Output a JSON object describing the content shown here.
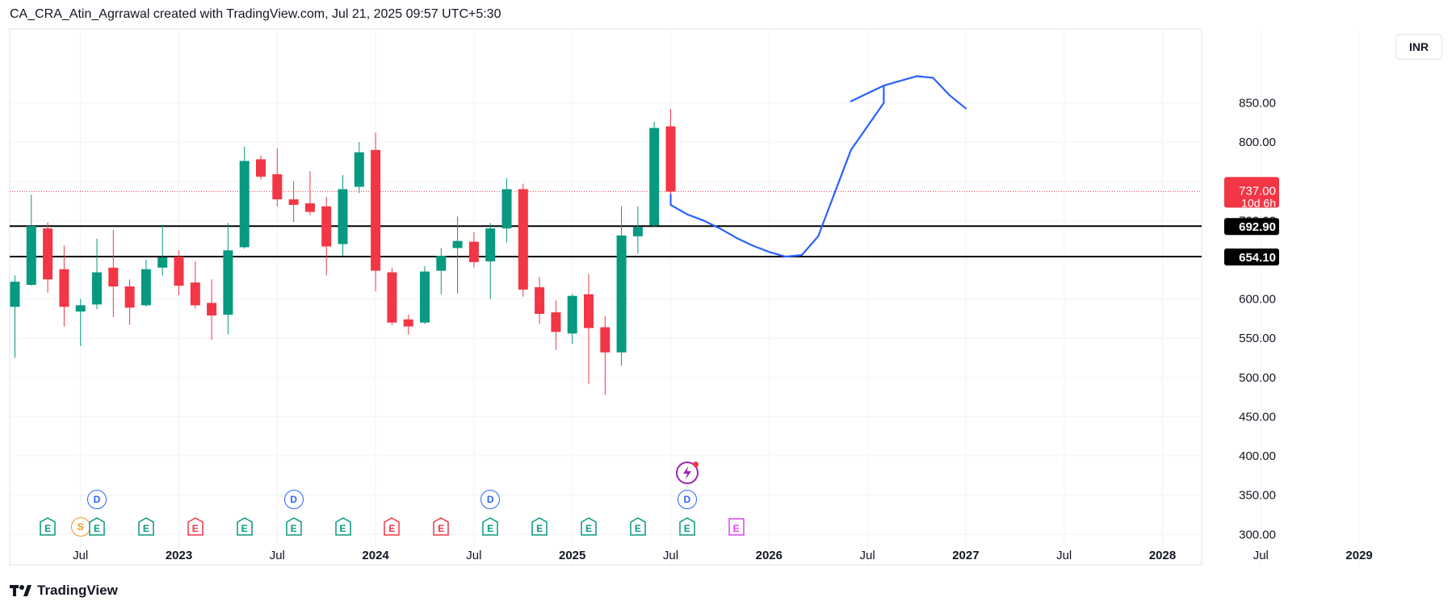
{
  "header": {
    "title": "CA_CRA_Atin_Agrrawal created with TradingView.com, Jul 21, 2025 09:57 UTC+5:30"
  },
  "currency": "INR",
  "footer": {
    "brand": "TradingView"
  },
  "colors": {
    "up": "#089981",
    "down": "#f23645",
    "dividend": "#2962ff",
    "split": "#f7931a",
    "drawing": "#2962ff",
    "future_earnings": "#e040fb",
    "lightning": "#9c27b0"
  },
  "price_labels": [
    {
      "text": "737.00",
      "sub": "10d 6h",
      "kind": "last",
      "price": 737
    },
    {
      "text": "692.90",
      "kind": "level",
      "price": 692.9
    },
    {
      "text": "654.10",
      "kind": "level",
      "price": 654.1
    }
  ],
  "chart_data": {
    "type": "candlestick",
    "interval": "1M",
    "y_axis": {
      "ticks": [
        "300.00",
        "350.00",
        "400.00",
        "450.00",
        "500.00",
        "550.00",
        "600.00",
        "650.00",
        "700.00",
        "750.00",
        "800.00",
        "850.00"
      ],
      "range": [
        290,
        905
      ],
      "side": "right"
    },
    "x_axis": {
      "labels": [
        {
          "text": "Jul",
          "bold": false
        },
        {
          "text": "2023",
          "bold": true
        },
        {
          "text": "Jul",
          "bold": false
        },
        {
          "text": "2024",
          "bold": true
        },
        {
          "text": "Jul",
          "bold": false
        },
        {
          "text": "2025",
          "bold": true
        },
        {
          "text": "Jul",
          "bold": false
        },
        {
          "text": "2026",
          "bold": true
        },
        {
          "text": "Jul",
          "bold": false
        },
        {
          "text": "2027",
          "bold": true
        },
        {
          "text": "Jul",
          "bold": false
        },
        {
          "text": "2028",
          "bold": true
        },
        {
          "text": "Jul",
          "bold": false
        },
        {
          "text": "2029",
          "bold": true
        }
      ]
    },
    "horizontal_lines": [
      692.9,
      654.1
    ],
    "last_price": 737.0,
    "candles": [
      {
        "month": "2022-03",
        "o": 590,
        "h": 630,
        "l": 525,
        "c": 622
      },
      {
        "month": "2022-04",
        "o": 618,
        "h": 733,
        "l": 617,
        "c": 693
      },
      {
        "month": "2022-05",
        "o": 690,
        "h": 698,
        "l": 608,
        "c": 625
      },
      {
        "month": "2022-06",
        "o": 638,
        "h": 668,
        "l": 565,
        "c": 590
      },
      {
        "month": "2022-07",
        "o": 584,
        "h": 600,
        "l": 540,
        "c": 592
      },
      {
        "month": "2022-08",
        "o": 593,
        "h": 677,
        "l": 587,
        "c": 634
      },
      {
        "month": "2022-09",
        "o": 640,
        "h": 688,
        "l": 577,
        "c": 616
      },
      {
        "month": "2022-10",
        "o": 616,
        "h": 625,
        "l": 567,
        "c": 589
      },
      {
        "month": "2022-11",
        "o": 592,
        "h": 650,
        "l": 590,
        "c": 638
      },
      {
        "month": "2022-12",
        "o": 640,
        "h": 695,
        "l": 630,
        "c": 653
      },
      {
        "month": "2023-01",
        "o": 654,
        "h": 662,
        "l": 605,
        "c": 617
      },
      {
        "month": "2023-02",
        "o": 621,
        "h": 648,
        "l": 588,
        "c": 592
      },
      {
        "month": "2023-03",
        "o": 595,
        "h": 625,
        "l": 548,
        "c": 579
      },
      {
        "month": "2023-04",
        "o": 580,
        "h": 697,
        "l": 555,
        "c": 662
      },
      {
        "month": "2023-05",
        "o": 666,
        "h": 794,
        "l": 664,
        "c": 776
      },
      {
        "month": "2023-06",
        "o": 778,
        "h": 783,
        "l": 752,
        "c": 756
      },
      {
        "month": "2023-07",
        "o": 759,
        "h": 792,
        "l": 718,
        "c": 727
      },
      {
        "month": "2023-08",
        "o": 727,
        "h": 750,
        "l": 698,
        "c": 720
      },
      {
        "month": "2023-09",
        "o": 722,
        "h": 763,
        "l": 707,
        "c": 711
      },
      {
        "month": "2023-10",
        "o": 718,
        "h": 730,
        "l": 630,
        "c": 667
      },
      {
        "month": "2023-11",
        "o": 670,
        "h": 758,
        "l": 655,
        "c": 740
      },
      {
        "month": "2023-12",
        "o": 743,
        "h": 800,
        "l": 735,
        "c": 787
      },
      {
        "month": "2024-01",
        "o": 790,
        "h": 812,
        "l": 610,
        "c": 636
      },
      {
        "month": "2024-02",
        "o": 634,
        "h": 640,
        "l": 567,
        "c": 570
      },
      {
        "month": "2024-03",
        "o": 574,
        "h": 580,
        "l": 555,
        "c": 565
      },
      {
        "month": "2024-04",
        "o": 570,
        "h": 642,
        "l": 568,
        "c": 635
      },
      {
        "month": "2024-05",
        "o": 636,
        "h": 665,
        "l": 606,
        "c": 655
      },
      {
        "month": "2024-06",
        "o": 665,
        "h": 705,
        "l": 607,
        "c": 674
      },
      {
        "month": "2024-07",
        "o": 673,
        "h": 685,
        "l": 640,
        "c": 647
      },
      {
        "month": "2024-08",
        "o": 648,
        "h": 697,
        "l": 600,
        "c": 690
      },
      {
        "month": "2024-09",
        "o": 690,
        "h": 754,
        "l": 672,
        "c": 740
      },
      {
        "month": "2024-10",
        "o": 740,
        "h": 747,
        "l": 603,
        "c": 612
      },
      {
        "month": "2024-11",
        "o": 615,
        "h": 628,
        "l": 568,
        "c": 581
      },
      {
        "month": "2024-12",
        "o": 583,
        "h": 598,
        "l": 535,
        "c": 558
      },
      {
        "month": "2025-01",
        "o": 556,
        "h": 607,
        "l": 543,
        "c": 604
      },
      {
        "month": "2025-02",
        "o": 606,
        "h": 632,
        "l": 492,
        "c": 563
      },
      {
        "month": "2025-03",
        "o": 564,
        "h": 578,
        "l": 478,
        "c": 532
      },
      {
        "month": "2025-04",
        "o": 532,
        "h": 718,
        "l": 515,
        "c": 681
      },
      {
        "month": "2025-05",
        "o": 680,
        "h": 718,
        "l": 658,
        "c": 692
      },
      {
        "month": "2025-06",
        "o": 694,
        "h": 826,
        "l": 692,
        "c": 818
      },
      {
        "month": "2025-07",
        "o": 820,
        "h": 842,
        "l": 733,
        "c": 737
      }
    ],
    "events": [
      {
        "type": "E",
        "kind": "earnings_up",
        "month": "2022-05"
      },
      {
        "type": "S",
        "kind": "split",
        "month": "2022-07"
      },
      {
        "type": "E",
        "kind": "earnings_up",
        "month": "2022-08"
      },
      {
        "type": "D",
        "kind": "dividend",
        "month": "2022-08"
      },
      {
        "type": "E",
        "kind": "earnings_up",
        "month": "2022-11"
      },
      {
        "type": "E",
        "kind": "earnings_down",
        "month": "2023-02"
      },
      {
        "type": "E",
        "kind": "earnings_up",
        "month": "2023-05"
      },
      {
        "type": "E",
        "kind": "earnings_up",
        "month": "2023-08"
      },
      {
        "type": "D",
        "kind": "dividend",
        "month": "2023-08"
      },
      {
        "type": "E",
        "kind": "earnings_up",
        "month": "2023-11"
      },
      {
        "type": "E",
        "kind": "earnings_down",
        "month": "2024-02"
      },
      {
        "type": "E",
        "kind": "earnings_down",
        "month": "2024-05"
      },
      {
        "type": "E",
        "kind": "earnings_up",
        "month": "2024-08"
      },
      {
        "type": "D",
        "kind": "dividend",
        "month": "2024-08"
      },
      {
        "type": "E",
        "kind": "earnings_up",
        "month": "2024-11"
      },
      {
        "type": "E",
        "kind": "earnings_up",
        "month": "2025-02"
      },
      {
        "type": "E",
        "kind": "earnings_up",
        "month": "2025-05"
      },
      {
        "type": "E",
        "kind": "earnings_up",
        "month": "2025-08"
      },
      {
        "type": "D",
        "kind": "dividend",
        "month": "2025-08"
      },
      {
        "type": "lightning",
        "kind": "lightning",
        "month": "2025-08"
      },
      {
        "type": "E",
        "kind": "earnings_future",
        "month": "2025-11"
      }
    ],
    "drawing": {
      "type": "freehand",
      "points": [
        [
          "2025-07",
          733
        ],
        [
          "2025-07",
          720
        ],
        [
          "2025-08",
          708
        ],
        [
          "2025-09",
          700
        ],
        [
          "2025-10",
          690
        ],
        [
          "2025-11",
          678
        ],
        [
          "2025-12",
          668
        ],
        [
          "2026-01",
          660
        ],
        [
          "2026-02",
          654
        ],
        [
          "2026-03",
          656
        ],
        [
          "2026-04",
          680
        ],
        [
          "2026-05",
          735
        ],
        [
          "2026-06",
          790
        ],
        [
          "2026-07",
          820
        ],
        [
          "2026-08",
          850
        ],
        [
          "2026-08",
          870
        ]
      ],
      "tail": [
        [
          "2026-06",
          852
        ],
        [
          "2026-07",
          862
        ],
        [
          "2026-08",
          872
        ],
        [
          "2026-10",
          884
        ],
        [
          "2026-11",
          882
        ],
        [
          "2026-12",
          860
        ],
        [
          "2027-01",
          843
        ]
      ]
    }
  }
}
